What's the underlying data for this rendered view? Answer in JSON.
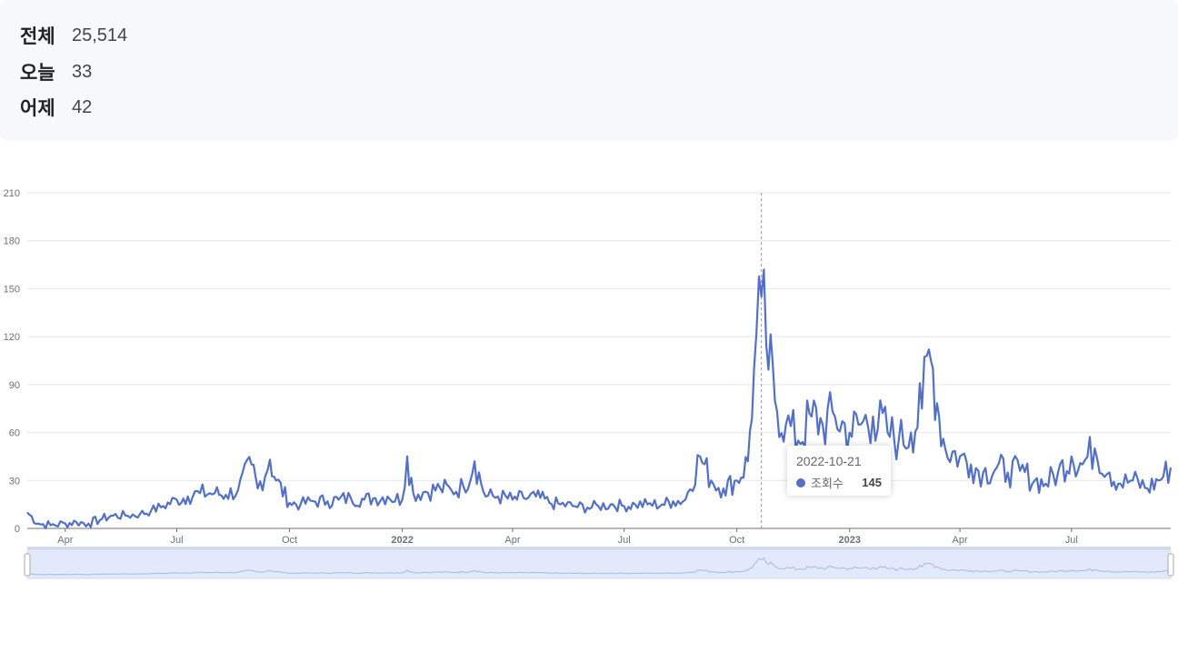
{
  "stats": [
    {
      "label": "전체",
      "value": "25,514"
    },
    {
      "label": "오늘",
      "value": "33"
    },
    {
      "label": "어제",
      "value": "42"
    }
  ],
  "tooltip": {
    "date": "2022-10-21",
    "series": "조회수",
    "value": "145"
  },
  "colors": {
    "line": "#5470c6",
    "grid": "#e0e6f1",
    "axis": "#6e7079",
    "zoom_fill": "#e2e9fb"
  },
  "chart_data": {
    "type": "line",
    "ylim": [
      0,
      210
    ],
    "y_ticks": [
      "0",
      "30",
      "60",
      "90",
      "120",
      "150",
      "180",
      "210"
    ],
    "x_range": [
      "2021-03-01",
      "2023-09-20"
    ],
    "x_ticks": [
      {
        "date": "2021-04-01",
        "label": "Apr",
        "bold": false
      },
      {
        "date": "2021-07-01",
        "label": "Jul",
        "bold": false
      },
      {
        "date": "2021-10-01",
        "label": "Oct",
        "bold": false
      },
      {
        "date": "2022-01-01",
        "label": "2022",
        "bold": true
      },
      {
        "date": "2022-04-01",
        "label": "Apr",
        "bold": false
      },
      {
        "date": "2022-07-01",
        "label": "Jul",
        "bold": false
      },
      {
        "date": "2022-10-01",
        "label": "Oct",
        "bold": false
      },
      {
        "date": "2023-01-01",
        "label": "2023",
        "bold": true
      },
      {
        "date": "2023-04-01",
        "label": "Apr",
        "bold": false
      },
      {
        "date": "2023-07-01",
        "label": "Jul",
        "bold": false
      }
    ],
    "highlight": {
      "date": "2022-10-21",
      "value": 145
    },
    "series": [
      {
        "name": "조회수",
        "points": [
          [
            "2021-03-01",
            10
          ],
          [
            "2021-03-10",
            3
          ],
          [
            "2021-03-20",
            2
          ],
          [
            "2021-04-01",
            3
          ],
          [
            "2021-04-10",
            4
          ],
          [
            "2021-04-20",
            3
          ],
          [
            "2021-05-01",
            6
          ],
          [
            "2021-05-10",
            8
          ],
          [
            "2021-05-20",
            8
          ],
          [
            "2021-06-01",
            9
          ],
          [
            "2021-06-10",
            11
          ],
          [
            "2021-06-20",
            14
          ],
          [
            "2021-07-01",
            18
          ],
          [
            "2021-07-10",
            20
          ],
          [
            "2021-07-20",
            22
          ],
          [
            "2021-08-01",
            22
          ],
          [
            "2021-08-10",
            21
          ],
          [
            "2021-08-20",
            24
          ],
          [
            "2021-08-31",
            40
          ],
          [
            "2021-09-05",
            25
          ],
          [
            "2021-09-15",
            43
          ],
          [
            "2021-09-20",
            30
          ],
          [
            "2021-10-01",
            16
          ],
          [
            "2021-10-10",
            15
          ],
          [
            "2021-10-20",
            17
          ],
          [
            "2021-11-01",
            17
          ],
          [
            "2021-11-10",
            18
          ],
          [
            "2021-11-20",
            19
          ],
          [
            "2021-12-01",
            18
          ],
          [
            "2021-12-10",
            19
          ],
          [
            "2021-12-20",
            20
          ],
          [
            "2022-01-01",
            18
          ],
          [
            "2022-01-05",
            45
          ],
          [
            "2022-01-10",
            22
          ],
          [
            "2022-01-20",
            23
          ],
          [
            "2022-02-01",
            25
          ],
          [
            "2022-02-10",
            24
          ],
          [
            "2022-02-20",
            26
          ],
          [
            "2022-03-01",
            42
          ],
          [
            "2022-03-10",
            20
          ],
          [
            "2022-03-20",
            20
          ],
          [
            "2022-04-01",
            18
          ],
          [
            "2022-04-10",
            19
          ],
          [
            "2022-04-20",
            20
          ],
          [
            "2022-05-01",
            16
          ],
          [
            "2022-05-10",
            15
          ],
          [
            "2022-05-20",
            14
          ],
          [
            "2022-06-01",
            13
          ],
          [
            "2022-06-10",
            14
          ],
          [
            "2022-06-20",
            15
          ],
          [
            "2022-07-01",
            14
          ],
          [
            "2022-07-10",
            15
          ],
          [
            "2022-07-20",
            15
          ],
          [
            "2022-08-01",
            15
          ],
          [
            "2022-08-10",
            17
          ],
          [
            "2022-08-20",
            18
          ],
          [
            "2022-09-01",
            45
          ],
          [
            "2022-09-10",
            30
          ],
          [
            "2022-09-20",
            25
          ],
          [
            "2022-10-01",
            30
          ],
          [
            "2022-10-10",
            42
          ],
          [
            "2022-10-15",
            100
          ],
          [
            "2022-10-21",
            145
          ],
          [
            "2022-10-25",
            115
          ],
          [
            "2022-11-01",
            80
          ],
          [
            "2022-11-10",
            65
          ],
          [
            "2022-11-20",
            55
          ],
          [
            "2022-12-01",
            70
          ],
          [
            "2022-12-10",
            65
          ],
          [
            "2022-12-20",
            70
          ],
          [
            "2023-01-01",
            60
          ],
          [
            "2023-01-10",
            65
          ],
          [
            "2023-01-20",
            70
          ],
          [
            "2023-02-01",
            60
          ],
          [
            "2023-02-10",
            55
          ],
          [
            "2023-02-20",
            60
          ],
          [
            "2023-03-01",
            75
          ],
          [
            "2023-03-05",
            108
          ],
          [
            "2023-03-10",
            100
          ],
          [
            "2023-03-15",
            70
          ],
          [
            "2023-03-20",
            50
          ],
          [
            "2023-04-01",
            45
          ],
          [
            "2023-04-10",
            40
          ],
          [
            "2023-04-20",
            35
          ],
          [
            "2023-05-01",
            38
          ],
          [
            "2023-05-10",
            35
          ],
          [
            "2023-05-20",
            36
          ],
          [
            "2023-06-01",
            30
          ],
          [
            "2023-06-10",
            28
          ],
          [
            "2023-06-20",
            35
          ],
          [
            "2023-07-01",
            45
          ],
          [
            "2023-07-10",
            40
          ],
          [
            "2023-07-20",
            50
          ],
          [
            "2023-08-01",
            35
          ],
          [
            "2023-08-10",
            28
          ],
          [
            "2023-08-20",
            30
          ],
          [
            "2023-09-01",
            25
          ],
          [
            "2023-09-10",
            30
          ],
          [
            "2023-09-20",
            38
          ]
        ]
      }
    ]
  }
}
